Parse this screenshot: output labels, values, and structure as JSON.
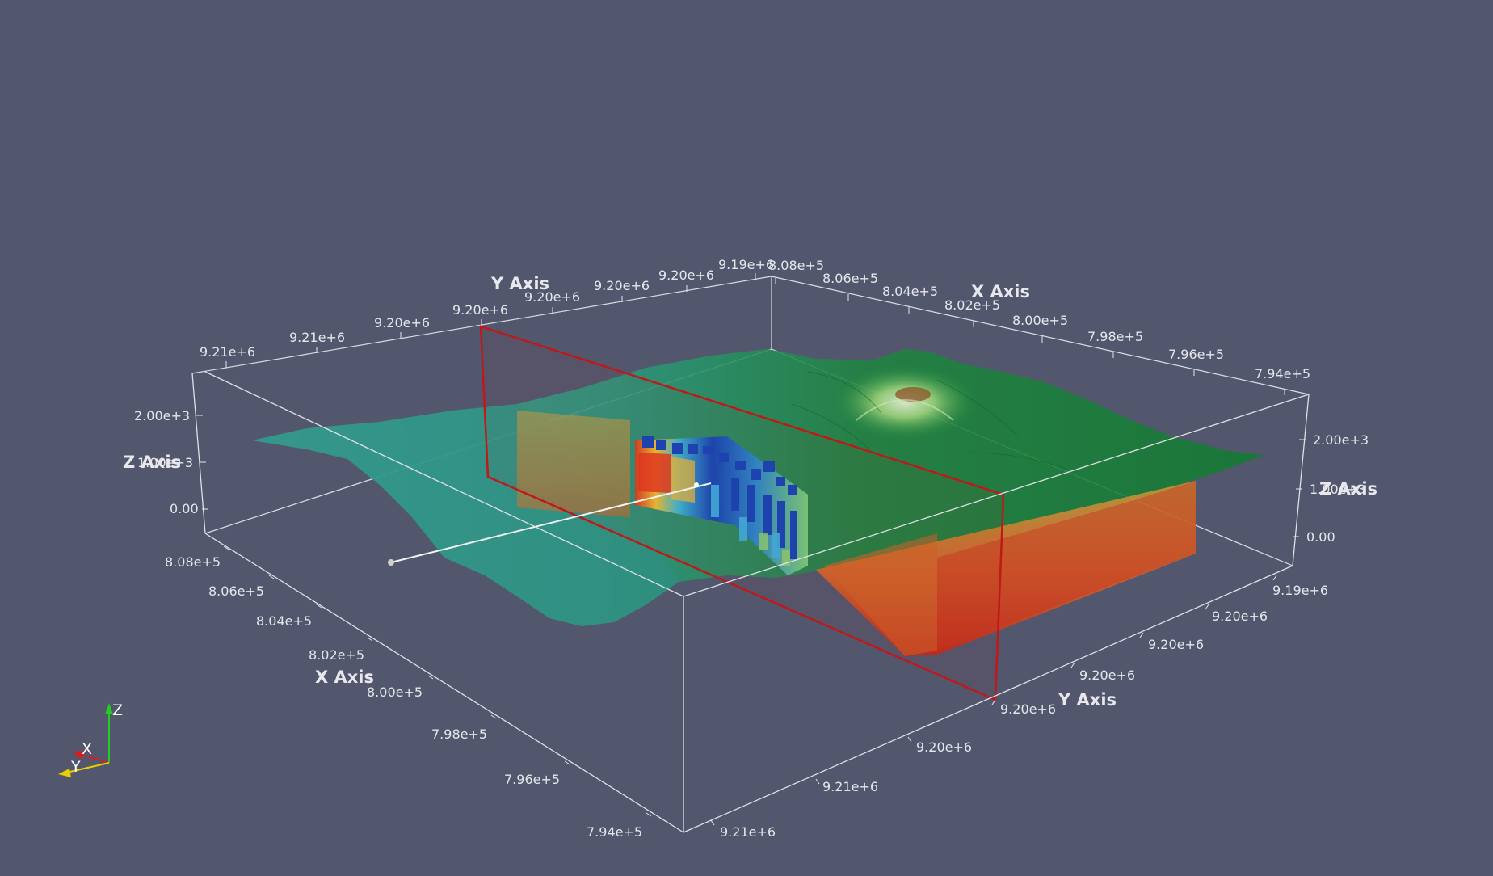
{
  "axes": {
    "titles": {
      "y_back": "Y Axis",
      "x_back": "X Axis",
      "z_left": "Z Axis",
      "z_right": "Z Axis",
      "x_front": "X Axis",
      "y_front": "Y Axis"
    },
    "y_back_ticks": [
      "9.21e+6",
      "9.21e+6",
      "9.20e+6",
      "9.20e+6",
      "9.20e+6",
      "9.20e+6",
      "9.20e+6",
      "9.19e+6"
    ],
    "x_back_ticks": [
      "8.08e+5",
      "8.06e+5",
      "8.04e+5",
      "8.02e+5",
      "8.00e+5",
      "7.98e+5",
      "7.96e+5",
      "7.94e+5"
    ],
    "z_left_ticks": [
      "2.00e+3",
      "1.00e+3",
      "0.00"
    ],
    "z_right_ticks": [
      "2.00e+3",
      "1.00e+3",
      "0.00"
    ],
    "x_front_ticks": [
      "8.08e+5",
      "8.06e+5",
      "8.04e+5",
      "8.02e+5",
      "8.00e+5",
      "7.98e+5",
      "7.96e+5",
      "7.94e+5"
    ],
    "y_right_ticks": [
      "9.19e+6",
      "9.20e+6",
      "9.20e+6",
      "9.20e+6",
      "9.20e+6"
    ],
    "y_front_ticks": [
      "9.20e+6",
      "9.21e+6",
      "9.21e+6"
    ]
  },
  "orientation_axes": {
    "x": "X",
    "y": "Y",
    "z": "Z"
  },
  "colors": {
    "background": "#52576e",
    "slice_plane": "#c01818",
    "terrain_green": "#1f8a3a",
    "terrain_teal": "#35a89c",
    "model_warm": "#d6582a"
  }
}
